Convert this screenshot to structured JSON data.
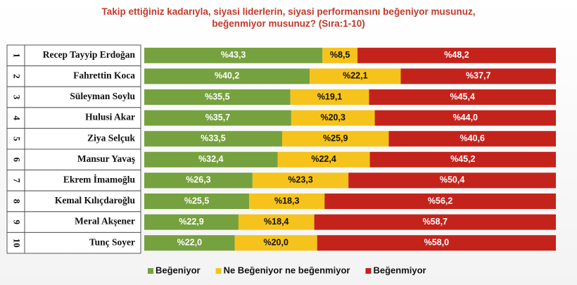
{
  "chart_data": {
    "type": "stacked-bar-horizontal",
    "title": "Takip ettiğiniz kadarıyla, siyasi liderlerin, siyasi performansını beğeniyor musunuz, beğenmiyor musunuz? (Sıra:1-10)",
    "ranks": [
      1,
      2,
      3,
      4,
      5,
      6,
      7,
      8,
      9,
      10
    ],
    "categories": [
      "Recep Tayyip Erdoğan",
      "Fahrettin Koca",
      "Süleyman Soylu",
      "Hulusi Akar",
      "Ziya Selçuk",
      "Mansur Yavaş",
      "Ekrem İmamoğlu",
      "Kemal Kılıçdaroğlu",
      "Meral Akşener",
      "Tunç Soyer"
    ],
    "xlim": [
      0,
      100
    ],
    "legend": "bottom",
    "series": [
      {
        "name": "Beğeniyor",
        "color": "#76a13f",
        "text_color": "#ffffff",
        "values": [
          43.3,
          40.2,
          35.5,
          35.7,
          33.5,
          32.4,
          26.3,
          25.5,
          22.9,
          22.0
        ],
        "value_labels": [
          "%43,3",
          "%40,2",
          "%35,5",
          "%35,7",
          "%33,5",
          "%32,4",
          "%26,3",
          "%25,5",
          "%22,9",
          "%22,0"
        ]
      },
      {
        "name": "Ne Beğeniyor ne beğenmiyor",
        "color": "#f6c31c",
        "text_color": "#111111",
        "values": [
          8.5,
          22.1,
          19.1,
          20.3,
          25.9,
          22.4,
          23.3,
          18.3,
          18.4,
          20.0
        ],
        "value_labels": [
          "%8,5",
          "%22,1",
          "%19,1",
          "%20,3",
          "%25,9",
          "%22,4",
          "%23,3",
          "%18,3",
          "%18,4",
          "%20,0"
        ]
      },
      {
        "name": "Beğenmiyor",
        "color": "#c4231c",
        "text_color": "#ffffff",
        "values": [
          48.2,
          37.7,
          45.4,
          44.0,
          40.6,
          45.2,
          50.4,
          56.2,
          58.7,
          58.0
        ],
        "value_labels": [
          "%48,2",
          "%37,7",
          "%45,4",
          "%44,0",
          "%40,6",
          "%45,2",
          "%50,4",
          "%56,2",
          "%58,7",
          "%58,0"
        ]
      }
    ]
  }
}
